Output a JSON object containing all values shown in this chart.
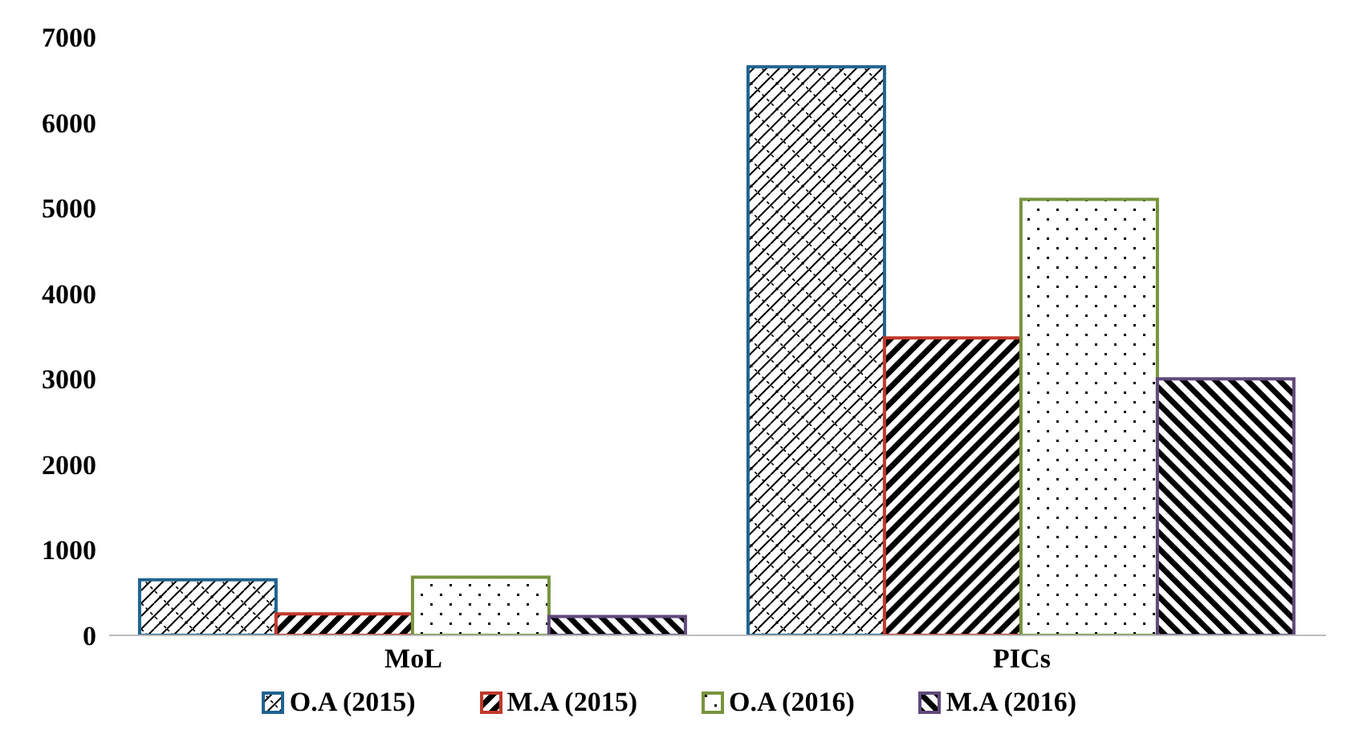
{
  "chart_data": {
    "type": "bar",
    "categories": [
      "MoL",
      "PICs"
    ],
    "series": [
      {
        "name": "O.A (2015)",
        "color": "#1f6391",
        "values": [
          650,
          6650
        ]
      },
      {
        "name": "M.A (2015)",
        "color": "#c0392b",
        "values": [
          250,
          3480
        ]
      },
      {
        "name": "O.A (2016)",
        "color": "#77933c",
        "values": [
          680,
          5100
        ]
      },
      {
        "name": "M.A (2016)",
        "color": "#604a7b",
        "values": [
          220,
          3000
        ]
      }
    ],
    "ylim": [
      0,
      7000
    ],
    "yticks": [
      0,
      1000,
      2000,
      3000,
      4000,
      5000,
      6000,
      7000
    ],
    "grid": false,
    "legend": "bottom"
  }
}
